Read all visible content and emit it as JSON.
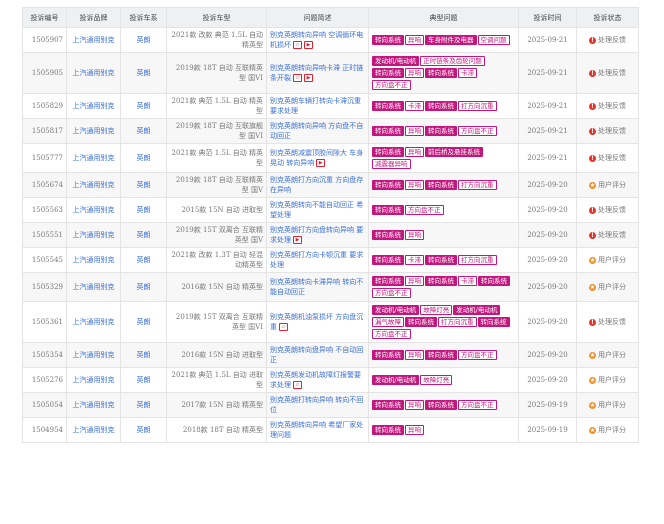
{
  "colors": {
    "tag": "#c3177f",
    "link": "#3b6fd6",
    "status_processing": "#e2342a",
    "status_rating": "#f0922b"
  },
  "headers": [
    "投诉编号",
    "投诉品牌",
    "投诉车系",
    "投诉车型",
    "问题简述",
    "典型问题",
    "投诉时间",
    "投诉状态"
  ],
  "rows": [
    {
      "id": "1505907",
      "brand": "上汽通用别克",
      "series": "英朗",
      "model": "2021款 改款 典范 1.5L 自动 精英型",
      "desc": "别克英朗转向异响 空调循环电机损坏",
      "icons": [
        "image",
        "video"
      ],
      "tags": [
        {
          "t": "转向系统",
          "s": 1
        },
        {
          "t": "异响",
          "s": 0
        },
        {
          "t": "车身附件及电器",
          "s": 1
        },
        {
          "t": "空调问题",
          "s": 0
        }
      ],
      "date": "2025-09-21",
      "status": "处理反馈",
      "st": "red"
    },
    {
      "id": "1505905",
      "brand": "上汽通用别克",
      "series": "英朗",
      "model": "2019款 18T 自动 互联精英型 国VI",
      "desc": "别克英朗转向异响卡滞 正时链条开裂",
      "icons": [
        "image",
        "video"
      ],
      "tags": [
        {
          "t": "发动机/电动机",
          "s": 1
        },
        {
          "t": "正时链条及齿轮问题",
          "s": 0
        },
        {
          "t": "转向系统",
          "s": 1
        },
        {
          "t": "异响",
          "s": 0
        },
        {
          "t": "转向系统",
          "s": 1
        },
        {
          "t": "卡滞",
          "s": 0
        },
        {
          "t": "方向盘不正",
          "s": 0
        }
      ],
      "date": "2025-09-21",
      "status": "处理反馈",
      "st": "red"
    },
    {
      "id": "1505829",
      "brand": "上汽通用别克",
      "series": "英朗",
      "model": "2021款 典范 1.5L 自动 精英型",
      "desc": "别克英朗车辆打转向卡滞沉重 要求处理",
      "icons": [],
      "tags": [
        {
          "t": "转向系统",
          "s": 1
        },
        {
          "t": "卡滞",
          "s": 0
        },
        {
          "t": "转向系统",
          "s": 1
        },
        {
          "t": "打方向沉重",
          "s": 0
        }
      ],
      "date": "2025-09-21",
      "status": "处理反馈",
      "st": "red"
    },
    {
      "id": "1505817",
      "brand": "上汽通用别克",
      "series": "英朗",
      "model": "2019款 18T 自动 互联旗舰型 国VI",
      "desc": "别克英朗转向异响 方向盘不自动回正",
      "icons": [],
      "tags": [
        {
          "t": "转向系统",
          "s": 1
        },
        {
          "t": "异响",
          "s": 0
        },
        {
          "t": "转向系统",
          "s": 1
        },
        {
          "t": "方向盘不正",
          "s": 0
        }
      ],
      "date": "2025-09-21",
      "status": "处理反馈",
      "st": "red"
    },
    {
      "id": "1505777",
      "brand": "上汽通用别克",
      "series": "英朗",
      "model": "2021款 典范 1.5L 自动 精英型",
      "desc": "别克英朗减震顶胶间隙大 车身晃动 转向异响",
      "icons": [
        "video"
      ],
      "tags": [
        {
          "t": "转向系统",
          "s": 1
        },
        {
          "t": "异响",
          "s": 0
        },
        {
          "t": "前后桥及悬挂系统",
          "s": 1
        },
        {
          "t": "减震器异响",
          "s": 0
        }
      ],
      "date": "2025-09-21",
      "status": "处理反馈",
      "st": "red"
    },
    {
      "id": "1505674",
      "brand": "上汽通用别克",
      "series": "英朗",
      "model": "2019款 18T 自动 互联精英型 国V",
      "desc": "别克英朗打方向沉重 方向盘存在异响",
      "icons": [],
      "tags": [
        {
          "t": "转向系统",
          "s": 1
        },
        {
          "t": "异响",
          "s": 0
        },
        {
          "t": "转向系统",
          "s": 1
        },
        {
          "t": "打方向沉重",
          "s": 0
        }
      ],
      "date": "2025-09-20",
      "status": "用户评分",
      "st": "orange"
    },
    {
      "id": "1505563",
      "brand": "上汽通用别克",
      "series": "英朗",
      "model": "2015款 15N 自动 进取型",
      "desc": "别克英朗转向不能自动回正 希望处理",
      "icons": [],
      "tags": [
        {
          "t": "转向系统",
          "s": 1
        },
        {
          "t": "方向盘不正",
          "s": 0
        }
      ],
      "date": "2025-09-20",
      "status": "处理反馈",
      "st": "red"
    },
    {
      "id": "1505551",
      "brand": "上汽通用别克",
      "series": "英朗",
      "model": "2019款 15T 双离合 互联精英型 国V",
      "desc": "别克英朗打方向盘转向异响 要求处理",
      "icons": [
        "video"
      ],
      "tags": [
        {
          "t": "转向系统",
          "s": 1
        },
        {
          "t": "异响",
          "s": 0
        }
      ],
      "date": "2025-09-20",
      "status": "处理反馈",
      "st": "red"
    },
    {
      "id": "1505545",
      "brand": "上汽通用别克",
      "series": "英朗",
      "model": "2021款 改款 1.3T 自动 轻混动精英型",
      "desc": "别克英朗打方向卡顿沉重 要求处理",
      "icons": [],
      "tags": [
        {
          "t": "转向系统",
          "s": 1
        },
        {
          "t": "卡滞",
          "s": 0
        },
        {
          "t": "转向系统",
          "s": 1
        },
        {
          "t": "打方向沉重",
          "s": 0
        }
      ],
      "date": "2025-09-20",
      "status": "用户评分",
      "st": "orange"
    },
    {
      "id": "1505329",
      "brand": "上汽通用别克",
      "series": "英朗",
      "model": "2016款 15N 自动 精英型",
      "desc": "别克英朗转向卡滞异响 转向不能自动回正",
      "icons": [],
      "tags": [
        {
          "t": "转向系统",
          "s": 1
        },
        {
          "t": "异响",
          "s": 0
        },
        {
          "t": "转向系统",
          "s": 1
        },
        {
          "t": "卡滞",
          "s": 0
        },
        {
          "t": "转向系统",
          "s": 1
        },
        {
          "t": "方向盘不正",
          "s": 0
        }
      ],
      "date": "2025-09-20",
      "status": "用户评分",
      "st": "orange"
    },
    {
      "id": "1505361",
      "brand": "上汽通用别克",
      "series": "英朗",
      "model": "2019款 15T 双离合 互联精英型 国VI",
      "desc": "别克英朗机油泵损坏 方向盘沉重",
      "icons": [
        "image"
      ],
      "tags": [
        {
          "t": "发动机/电动机",
          "s": 1
        },
        {
          "t": "故障灯亮",
          "s": 0
        },
        {
          "t": "发动机/电动机",
          "s": 1
        },
        {
          "t": "漏气故障",
          "s": 0
        },
        {
          "t": "转向系统",
          "s": 1
        },
        {
          "t": "打方向沉重",
          "s": 0
        },
        {
          "t": "转向系统",
          "s": 1
        },
        {
          "t": "方向盘不正",
          "s": 0
        }
      ],
      "date": "2025-09-20",
      "status": "处理反馈",
      "st": "red"
    },
    {
      "id": "1505354",
      "brand": "上汽通用别克",
      "series": "英朗",
      "model": "2016款 15N 自动 进取型",
      "desc": "别克英朗转向盘异响 不自动回正",
      "icons": [],
      "tags": [
        {
          "t": "转向系统",
          "s": 1
        },
        {
          "t": "异响",
          "s": 0
        },
        {
          "t": "转向系统",
          "s": 1
        },
        {
          "t": "方向盘不正",
          "s": 0
        }
      ],
      "date": "2025-09-20",
      "status": "用户评分",
      "st": "orange"
    },
    {
      "id": "1505276",
      "brand": "上汽通用别克",
      "series": "英朗",
      "model": "2021款 典范 1.5L 自动 进取型",
      "desc": "别克英朗发动机故障灯报警要求处理",
      "icons": [
        "image"
      ],
      "tags": [
        {
          "t": "发动机/电动机",
          "s": 1
        },
        {
          "t": "故障灯亮",
          "s": 0
        }
      ],
      "date": "2025-09-20",
      "status": "用户评分",
      "st": "orange"
    },
    {
      "id": "1505054",
      "brand": "上汽通用别克",
      "series": "英朗",
      "model": "2017款 15N 自动 精英型",
      "desc": "别克英朗打转向异响 转向不回位",
      "icons": [],
      "tags": [
        {
          "t": "转向系统",
          "s": 1
        },
        {
          "t": "异响",
          "s": 0
        },
        {
          "t": "转向系统",
          "s": 1
        },
        {
          "t": "方向盘不正",
          "s": 0
        }
      ],
      "date": "2025-09-19",
      "status": "用户评分",
      "st": "orange"
    },
    {
      "id": "1504954",
      "brand": "上汽通用别克",
      "series": "英朗",
      "model": "2018款 18T 自动 精英型",
      "desc": "别克英朗转向异响 希望厂家处理问题",
      "icons": [],
      "tags": [
        {
          "t": "转向系统",
          "s": 1
        },
        {
          "t": "异响",
          "s": 0
        }
      ],
      "date": "2025-09-19",
      "status": "用户评分",
      "st": "orange"
    }
  ]
}
